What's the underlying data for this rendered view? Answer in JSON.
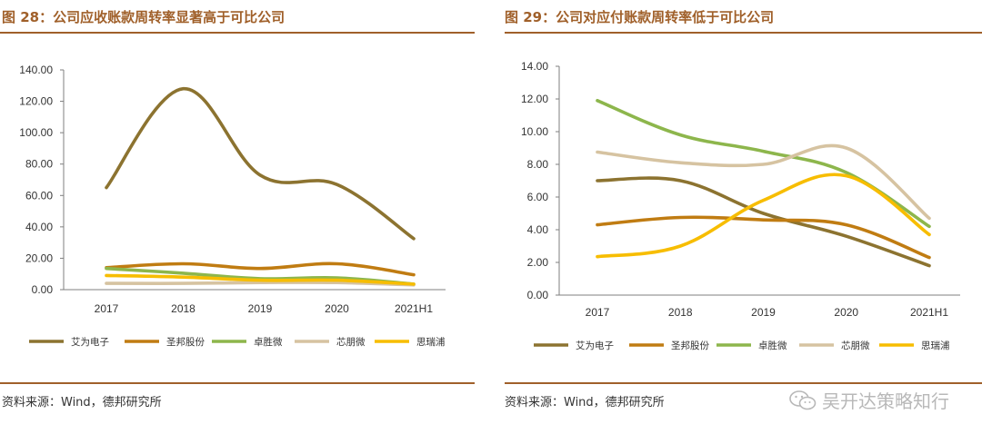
{
  "left": {
    "title": "图 28：公司应收账款周转率显著高于可比公司",
    "source": "资料来源：Wind，德邦研究所"
  },
  "right": {
    "title": "图 29：公司对应付账款周转率低于可比公司",
    "source": "资料来源：Wind，德邦研究所"
  },
  "watermark": {
    "text": "吴开达策略知行",
    "icon": "wechat-icon"
  },
  "colors": {
    "艾为电子": "#8c7330",
    "圣邦股份": "#c07c12",
    "卓胜微": "#8db64c",
    "芯朋微": "#d6c3a1",
    "思瑞浦": "#f7bd00"
  },
  "chart_data": [
    {
      "type": "line",
      "title": "图 28：公司应收账款周转率显著高于可比公司",
      "categories": [
        "2017",
        "2018",
        "2019",
        "2020",
        "2021H1"
      ],
      "ylim": [
        0,
        140
      ],
      "yticks": [
        "0.00",
        "20.00",
        "40.00",
        "60.00",
        "80.00",
        "100.00",
        "120.00",
        "140.00"
      ],
      "series": [
        {
          "name": "艾为电子",
          "values": [
            65,
            128,
            73,
            67,
            32.5
          ]
        },
        {
          "name": "圣邦股份",
          "values": [
            14,
            16.5,
            13.5,
            16.5,
            9.5
          ]
        },
        {
          "name": "卓胜微",
          "values": [
            13.5,
            10.5,
            7,
            7.5,
            3.5
          ]
        },
        {
          "name": "芯朋微",
          "values": [
            4,
            4,
            4.5,
            4.5,
            3
          ]
        },
        {
          "name": "思瑞浦",
          "values": [
            9,
            8,
            6,
            6,
            3.5
          ]
        }
      ],
      "legend": [
        "艾为电子",
        "圣邦股份",
        "卓胜微",
        "芯朋微",
        "思瑞浦"
      ]
    },
    {
      "type": "line",
      "title": "图 29：公司对应付账款周转率低于可比公司",
      "categories": [
        "2017",
        "2018",
        "2019",
        "2020",
        "2021H1"
      ],
      "ylim": [
        0,
        14
      ],
      "yticks": [
        "0.00",
        "2.00",
        "4.00",
        "6.00",
        "8.00",
        "10.00",
        "12.00",
        "14.00"
      ],
      "series": [
        {
          "name": "艾为电子",
          "values": [
            7.0,
            7.0,
            5.0,
            3.6,
            1.8
          ]
        },
        {
          "name": "圣邦股份",
          "values": [
            4.3,
            4.75,
            4.6,
            4.3,
            2.3
          ]
        },
        {
          "name": "卓胜微",
          "values": [
            11.9,
            9.8,
            8.8,
            7.5,
            4.2
          ]
        },
        {
          "name": "芯朋微",
          "values": [
            8.75,
            8.1,
            8.0,
            9.0,
            4.7
          ]
        },
        {
          "name": "思瑞浦",
          "values": [
            2.35,
            3.0,
            5.8,
            7.3,
            3.7
          ]
        }
      ],
      "legend": [
        "艾为电子",
        "圣邦股份",
        "卓胜微",
        "芯朋微",
        "思瑞浦"
      ]
    }
  ]
}
